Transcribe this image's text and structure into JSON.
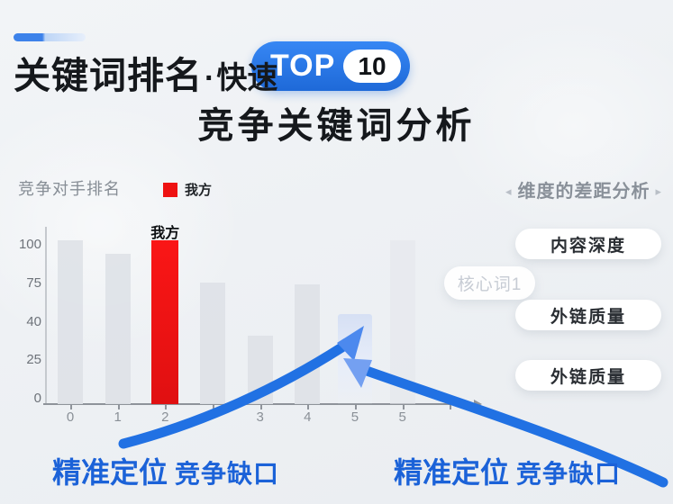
{
  "header": {
    "title_main": "关键词排名",
    "title_sep": "·",
    "title_sub": "快速",
    "badge": {
      "label": "TOP",
      "number": "10",
      "color": "#2677e3"
    },
    "subtitle": "竞争关键词分析"
  },
  "chart": {
    "title": "竞争对手排名",
    "legend": {
      "label": "我方",
      "color": "#ee1212"
    },
    "chart_data": {
      "type": "bar",
      "title": "竞争对手排名",
      "xlabel": "",
      "ylabel": "",
      "ylim": [
        0,
        100
      ],
      "y_ticks": [
        "100",
        "75",
        "40",
        "25",
        "0"
      ],
      "x_labels": [
        "0",
        "1",
        "2",
        "",
        "3",
        "4",
        "5",
        "5"
      ],
      "legend_entries": [
        {
          "name": "我方",
          "color": "#ee1212"
        }
      ],
      "grid": false,
      "legend_position": "top",
      "bars": [
        {
          "x": "0",
          "value": 100,
          "kind": "gray"
        },
        {
          "x": "1",
          "value": 92,
          "kind": "gray"
        },
        {
          "x": "2",
          "value": 100,
          "kind": "red",
          "label": "我方"
        },
        {
          "x": "",
          "value": 74,
          "kind": "gray"
        },
        {
          "x": "3",
          "value": 42,
          "kind": "gray"
        },
        {
          "x": "4",
          "value": 73,
          "kind": "gray"
        },
        {
          "x": "5",
          "value": 55,
          "kind": "highlight-blue"
        },
        {
          "x": "5",
          "value": 100,
          "kind": "faint"
        }
      ]
    }
  },
  "core_word_tag": {
    "label": "核心词1"
  },
  "right_panel": {
    "left_arrow": "◂",
    "title": "维度的差距分析",
    "right_arrow": "▸",
    "items": [
      {
        "label": "内容深度"
      },
      {
        "label": "外链质量"
      },
      {
        "label": "外链质量"
      }
    ]
  },
  "callouts": {
    "left": {
      "strong": "精准定位",
      "rest": "竞争缺口"
    },
    "right": {
      "strong": "精准定位",
      "rest": "竞争缺口"
    }
  },
  "colors": {
    "accent_blue": "#2171e3",
    "red": "#ee1212",
    "callout_blue": "#1b62d8"
  }
}
